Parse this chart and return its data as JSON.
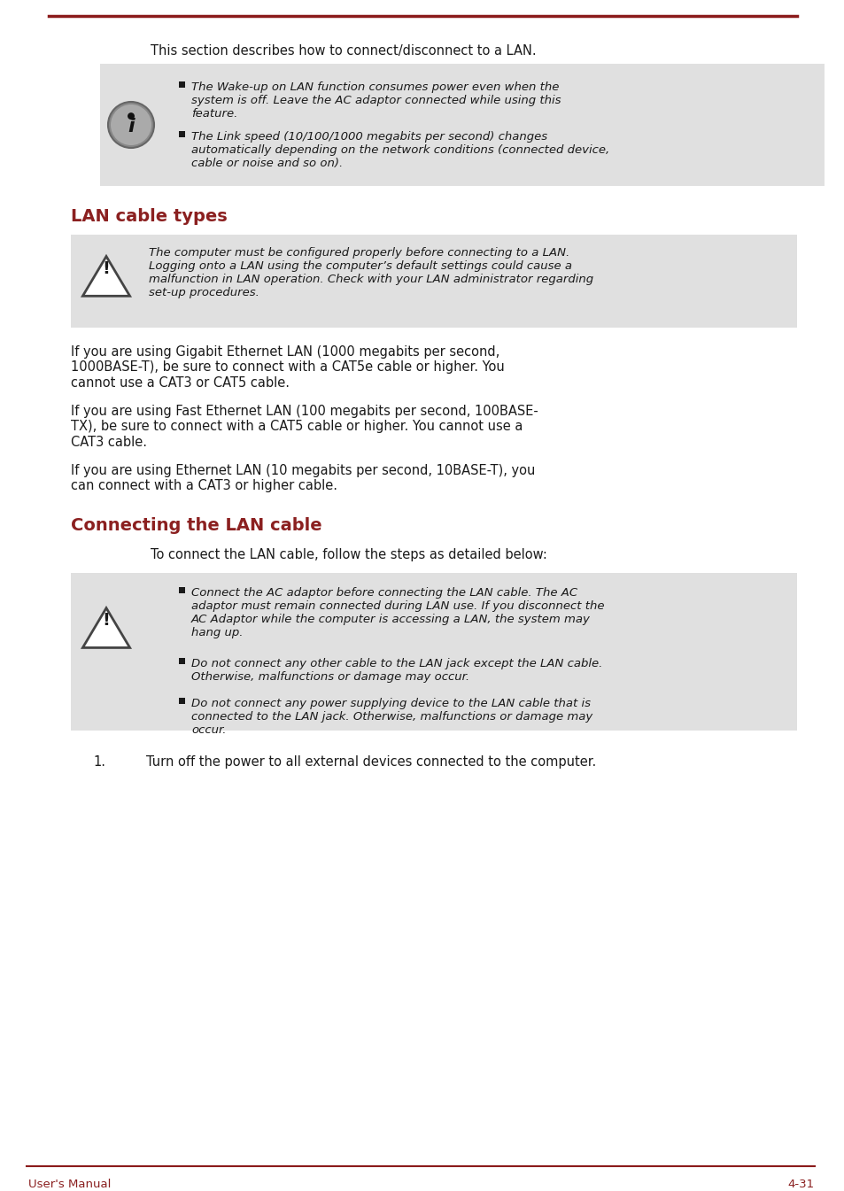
{
  "bg_color": "#ffffff",
  "line_color": "#8B1A1A",
  "section_title_color": "#8B2020",
  "body_text_color": "#1a1a1a",
  "footer_text_color": "#8B2020",
  "note_bg_color": "#e0e0e0",
  "intro_text": "This section describes how to connect/disconnect to a LAN.",
  "info_bullets": [
    "The Wake-up on LAN function consumes power even when the\nsystem is off. Leave the AC adaptor connected while using this\nfeature.",
    "The Link speed (10/100/1000 megabits per second) changes\nautomatically depending on the network conditions (connected device,\ncable or noise and so on)."
  ],
  "section1_title": "LAN cable types",
  "warning1_text": "The computer must be configured properly before connecting to a LAN.\nLogging onto a LAN using the computer’s default settings could cause a\nmalfunction in LAN operation. Check with your LAN administrator regarding\nset-up procedures.",
  "section1_body": [
    "If you are using Gigabit Ethernet LAN (1000 megabits per second,\n1000BASE-T), be sure to connect with a CAT5e cable or higher. You\ncannot use a CAT3 or CAT5 cable.",
    "If you are using Fast Ethernet LAN (100 megabits per second, 100BASE-\nTX), be sure to connect with a CAT5 cable or higher. You cannot use a\nCAT3 cable.",
    "If you are using Ethernet LAN (10 megabits per second, 10BASE-T), you\ncan connect with a CAT3 or higher cable."
  ],
  "section2_title": "Connecting the LAN cable",
  "section2_intro": "To connect the LAN cable, follow the steps as detailed below:",
  "warning2_bullets": [
    "Connect the AC adaptor before connecting the LAN cable. The AC\nadaptor must remain connected during LAN use. If you disconnect the\nAC Adaptor while the computer is accessing a LAN, the system may\nhang up.",
    "Do not connect any other cable to the LAN jack except the LAN cable.\nOtherwise, malfunctions or damage may occur.",
    "Do not connect any power supplying device to the LAN cable that is\nconnected to the LAN jack. Otherwise, malfunctions or damage may\noccur."
  ],
  "step1_text": "Turn off the power to all external devices connected to the computer.",
  "footer_left": "User's Manual",
  "footer_right": "4-31"
}
